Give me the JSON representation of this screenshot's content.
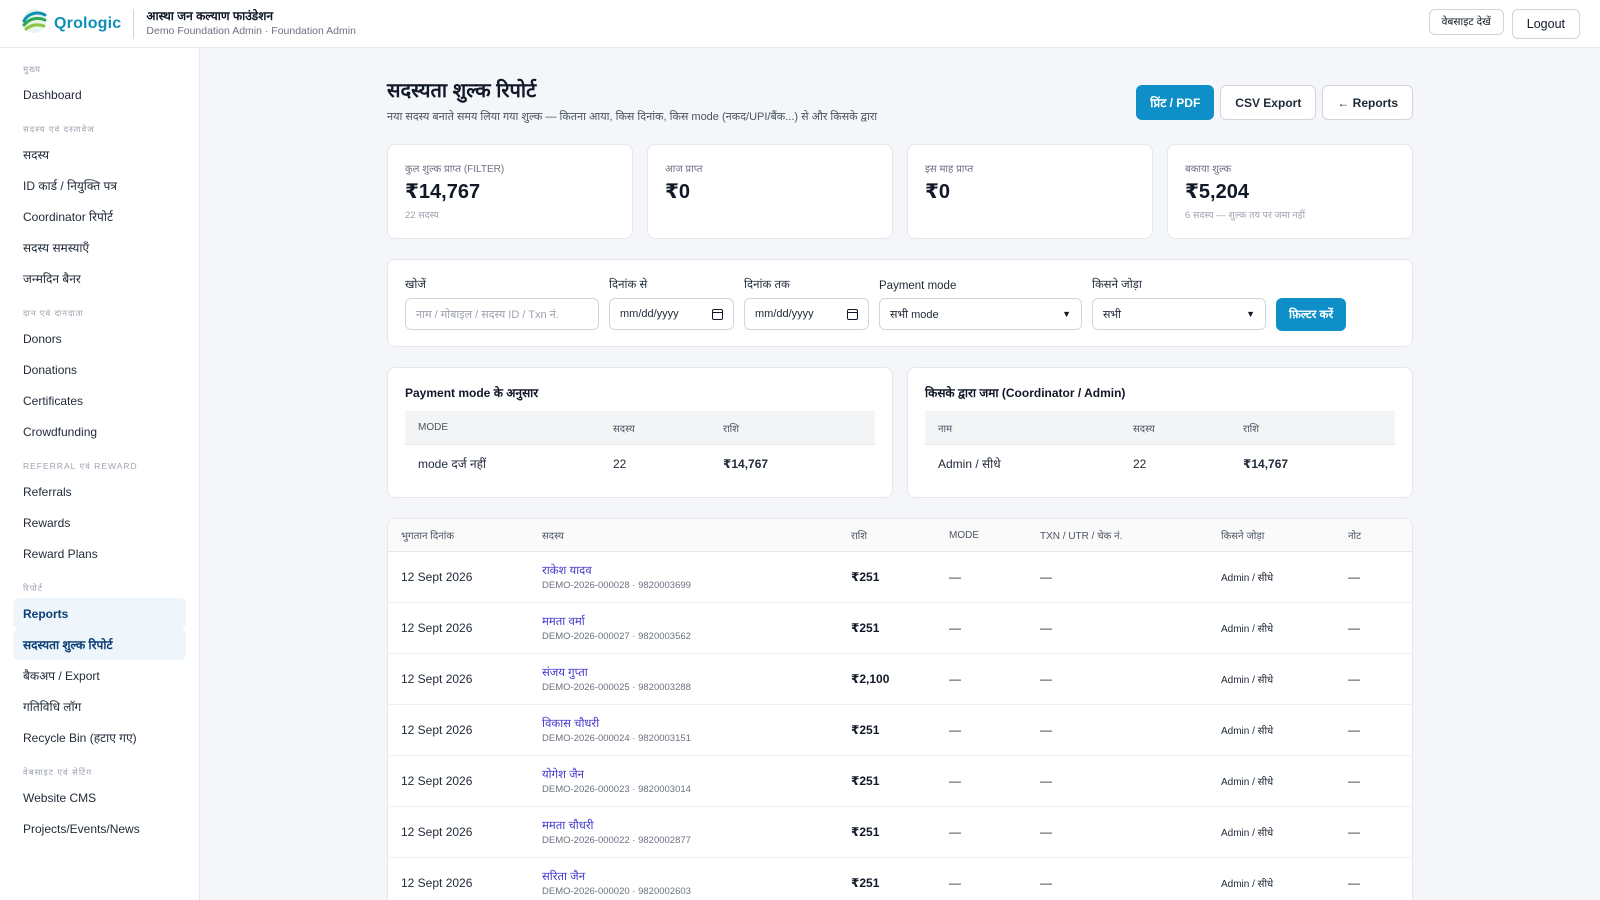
{
  "header": {
    "brand": "Qrologic",
    "org_name": "आस्था जन कल्याण फाउंडेशन",
    "org_sub": "Demo Foundation Admin · Foundation Admin",
    "website_btn": "वेबसाइट देखें",
    "logout_btn": "Logout"
  },
  "sidebar": {
    "sections": [
      {
        "title": "मुख्य",
        "items": [
          "Dashboard"
        ]
      },
      {
        "title": "सदस्य एवं दस्तावेज",
        "items": [
          "सदस्य",
          "ID कार्ड / नियुक्ति पत्र",
          "Coordinator रिपोर्ट",
          "सदस्य समस्याएँ",
          "जन्मदिन बैनर"
        ]
      },
      {
        "title": "दान एवं दानदाता",
        "items": [
          "Donors",
          "Donations",
          "Certificates",
          "Crowdfunding"
        ]
      },
      {
        "title": "Referral एवं Reward",
        "items": [
          "Referrals",
          "Rewards",
          "Reward Plans"
        ]
      },
      {
        "title": "रिपोर्ट",
        "items": [
          "Reports",
          "सदस्यता शुल्क रिपोर्ट",
          "बैकअप / Export",
          "गतिविधि लॉग",
          "Recycle Bin (हटाए गए)"
        ]
      },
      {
        "title": "वेबसाइट एवं सेटिंग",
        "items": [
          "Website CMS",
          "Projects/Events/News"
        ]
      }
    ]
  },
  "page": {
    "title": "सदस्यता शुल्क रिपोर्ट",
    "description": "नया सदस्य बनाते समय लिया गया शुल्क — कितना आया, किस दिनांक, किस mode (नकद/UPI/बैंक...) से और किसके द्वारा",
    "print_btn": "प्रिंट / PDF",
    "csv_btn": "CSV Export",
    "reports_btn": "← Reports"
  },
  "stats": [
    {
      "label": "कुल शुल्क प्राप्त (FILTER)",
      "value": "₹14,767",
      "note": "22 सदस्य"
    },
    {
      "label": "आज प्राप्त",
      "value": "₹0",
      "note": ""
    },
    {
      "label": "इस माह प्राप्त",
      "value": "₹0",
      "note": ""
    },
    {
      "label": "बकाया शुल्क",
      "value": "₹5,204",
      "note": "6 सदस्य — शुल्क तय पर जमा नहीं"
    }
  ],
  "filters": {
    "search_label": "खोजें",
    "search_placeholder": "नाम / मोबाइल / सदस्य ID / Txn नं.",
    "from_label": "दिनांक से",
    "from_value": "mm/dd/yyyy",
    "to_label": "दिनांक तक",
    "to_value": "mm/dd/yyyy",
    "mode_label": "Payment mode",
    "mode_value": "सभी mode",
    "by_label": "किसने जोड़ा",
    "by_value": "सभी",
    "submit": "फ़िल्टर करें"
  },
  "mode_summary": {
    "title": "Payment mode के अनुसार",
    "headers": [
      "MODE",
      "सदस्य",
      "राशि"
    ],
    "rows": [
      [
        "mode दर्ज नहीं",
        "22",
        "₹14,767"
      ]
    ]
  },
  "by_summary": {
    "title": "किसके द्वारा जमा (Coordinator / Admin)",
    "headers": [
      "नाम",
      "सदस्य",
      "राशि"
    ],
    "rows": [
      [
        "Admin / सीधे",
        "22",
        "₹14,767"
      ]
    ]
  },
  "payments": {
    "headers": [
      "भुगतान दिनांक",
      "सदस्य",
      "राशि",
      "MODE",
      "TXN / UTR / चेक नं.",
      "किसने जोड़ा",
      "नोट"
    ],
    "rows": [
      {
        "date": "12 Sept 2026",
        "name": "राकेश यादव",
        "sub": "DEMO-2026-000028 · 9820003699",
        "amount": "₹251",
        "mode": "—",
        "txn": "—",
        "by": "Admin / सीधे",
        "note": "—"
      },
      {
        "date": "12 Sept 2026",
        "name": "ममता वर्मा",
        "sub": "DEMO-2026-000027 · 9820003562",
        "amount": "₹251",
        "mode": "—",
        "txn": "—",
        "by": "Admin / सीधे",
        "note": "—"
      },
      {
        "date": "12 Sept 2026",
        "name": "संजय गुप्ता",
        "sub": "DEMO-2026-000025 · 9820003288",
        "amount": "₹2,100",
        "mode": "—",
        "txn": "—",
        "by": "Admin / सीधे",
        "note": "—"
      },
      {
        "date": "12 Sept 2026",
        "name": "विकास चौधरी",
        "sub": "DEMO-2026-000024 · 9820003151",
        "amount": "₹251",
        "mode": "—",
        "txn": "—",
        "by": "Admin / सीधे",
        "note": "—"
      },
      {
        "date": "12 Sept 2026",
        "name": "योगेश जैन",
        "sub": "DEMO-2026-000023 · 9820003014",
        "amount": "₹251",
        "mode": "—",
        "txn": "—",
        "by": "Admin / सीधे",
        "note": "—"
      },
      {
        "date": "12 Sept 2026",
        "name": "ममता चौधरी",
        "sub": "DEMO-2026-000022 · 9820002877",
        "amount": "₹251",
        "mode": "—",
        "txn": "—",
        "by": "Admin / सीधे",
        "note": "—"
      },
      {
        "date": "12 Sept 2026",
        "name": "सरिता जैन",
        "sub": "DEMO-2026-000020 · 9820002603",
        "amount": "₹251",
        "mode": "—",
        "txn": "—",
        "by": "Admin / सीधे",
        "note": "—"
      }
    ]
  },
  "colors": {
    "primary": "#0e8fc7",
    "brand": "#0e8fb8",
    "active_bg": "#eef6fb",
    "member_link": "#4338ca"
  }
}
